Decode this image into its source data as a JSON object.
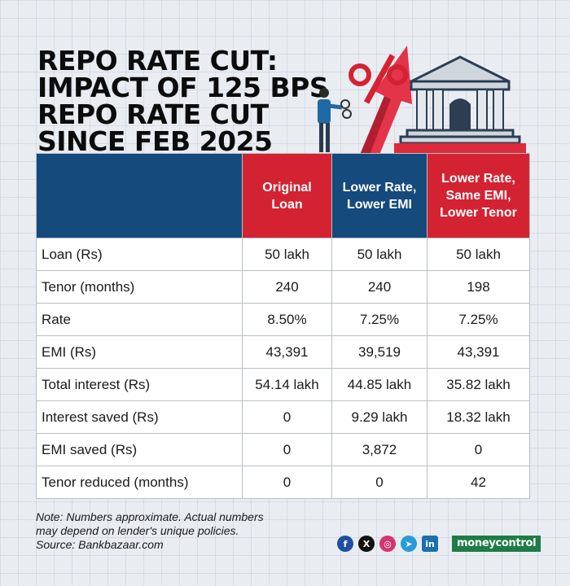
{
  "title_lines": [
    "REPO RATE CUT:",
    "IMPACT OF 125 BPS",
    "REPO RATE CUT",
    "SINCE FEB 2025"
  ],
  "table": {
    "headers": [
      "",
      "Original Loan",
      "Lower Rate, Lower EMI",
      "Lower Rate, Same EMI, Lower Tenor"
    ],
    "rows": [
      [
        "Loan (Rs)",
        "50 lakh",
        "50 lakh",
        "50 lakh"
      ],
      [
        "Tenor (months)",
        "240",
        "240",
        "198"
      ],
      [
        "Rate",
        "8.50%",
        "7.25%",
        "7.25%"
      ],
      [
        "EMI (Rs)",
        "43,391",
        "39,519",
        "43,391"
      ],
      [
        "Total interest  (Rs)",
        "54.14 lakh",
        "44.85 lakh",
        "35.82 lakh"
      ],
      [
        "Interest saved (Rs)",
        "0",
        "9.29 lakh",
        "18.32 lakh"
      ],
      [
        "EMI saved (Rs)",
        "0",
        "3,872",
        "0"
      ],
      [
        "Tenor reduced (months)",
        "0",
        "0",
        "42"
      ]
    ]
  },
  "note_lines": [
    "Note: Numbers approximate. Actual numbers",
    "may depend on lender's unique policies.",
    "Source: Bankbazaar.com"
  ],
  "social": {
    "icons": [
      "facebook-icon",
      "x-icon",
      "instagram-icon",
      "telegram-icon",
      "linkedin-icon"
    ],
    "glyphs": [
      "f",
      "X",
      "◎",
      "➤",
      "in"
    ]
  },
  "brand": "moneycontrol",
  "colors": {
    "red": "#d32333",
    "navy": "#154a7c",
    "green": "#1e7c46"
  }
}
